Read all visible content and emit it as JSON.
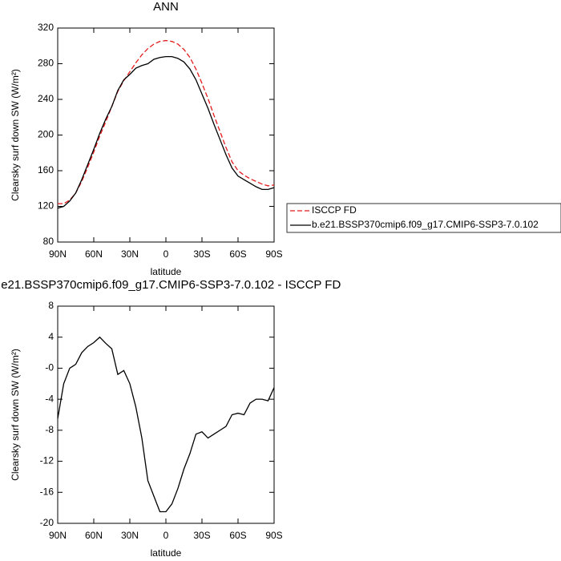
{
  "chart_data": [
    {
      "type": "line",
      "title": "ANN",
      "xlabel": "latitude",
      "ylabel": "Clearsky surf down SW (W/m²)",
      "x": [
        90,
        85,
        80,
        75,
        70,
        65,
        60,
        55,
        50,
        45,
        40,
        35,
        30,
        25,
        20,
        15,
        10,
        5,
        0,
        -5,
        -10,
        -15,
        -20,
        -25,
        -30,
        -35,
        -40,
        -45,
        -50,
        -55,
        -60,
        -65,
        -70,
        -75,
        -80,
        -85,
        -90
      ],
      "series": [
        {
          "name": "ISCCP FD",
          "color": "#e41a1c",
          "linestyle": "dashed",
          "values": [
            123,
            123,
            127,
            135,
            148,
            164,
            181,
            199,
            215,
            232,
            249,
            261,
            271,
            281,
            290,
            297,
            302,
            305,
            306,
            305,
            302,
            296,
            287,
            274,
            258,
            241,
            222,
            204,
            186,
            170,
            160,
            155,
            151,
            148,
            145,
            143,
            144
          ]
        },
        {
          "name": "b.e21.BSSP370cmip6.f09_g17.CMIP6-SSP3-7.0.102",
          "color": "#000000",
          "linestyle": "solid",
          "values": [
            118,
            120,
            126,
            135,
            150,
            167,
            184,
            202,
            218,
            232,
            250,
            262,
            268,
            275,
            278,
            280,
            285,
            287,
            288,
            288,
            286,
            282,
            274,
            262,
            246,
            230,
            212,
            195,
            178,
            163,
            154,
            150,
            146,
            142,
            139,
            139,
            141
          ]
        }
      ],
      "xlim": [
        90,
        -90
      ],
      "xticks": [
        {
          "value": 90,
          "label": "90N"
        },
        {
          "value": 60,
          "label": "60N"
        },
        {
          "value": 30,
          "label": "30N"
        },
        0,
        {
          "value": -30,
          "label": "30S"
        },
        {
          "value": -60,
          "label": "60S"
        },
        {
          "value": -90,
          "label": "90S"
        }
      ],
      "ylim": [
        80,
        320
      ],
      "yticks": [
        80,
        120,
        160,
        200,
        240,
        280,
        320
      ],
      "legend": "right"
    },
    {
      "type": "line",
      "title": "b.e21.BSSP370cmip6.f09_g17.CMIP6-SSP3-7.0.102 - ISCCP FD",
      "xlabel": "latitude",
      "ylabel": "Clearsky surf down SW (W/m²)",
      "x": [
        90,
        85,
        80,
        75,
        70,
        65,
        60,
        55,
        50,
        45,
        40,
        35,
        30,
        25,
        20,
        15,
        10,
        5,
        0,
        -5,
        -10,
        -15,
        -20,
        -25,
        -30,
        -35,
        -40,
        -45,
        -50,
        -55,
        -60,
        -65,
        -70,
        -75,
        -80,
        -85,
        -90
      ],
      "color": "#000000",
      "values": [
        -6.5,
        -2,
        0,
        0.5,
        2,
        2.8,
        3.3,
        4,
        3.2,
        2.5,
        -0.8,
        -0.3,
        -2,
        -5,
        -9,
        -14.5,
        -16.5,
        -18.5,
        -18.5,
        -17.5,
        -15.5,
        -13,
        -11,
        -8.5,
        -8.2,
        -9,
        -8.5,
        -8,
        -7.5,
        -6,
        -5.8,
        -6,
        -4.5,
        -4,
        -4,
        -4.2,
        -2.5
      ],
      "xlim": [
        90,
        -90
      ],
      "xticks": [
        {
          "value": 90,
          "label": "90N"
        },
        {
          "value": 60,
          "label": "60N"
        },
        {
          "value": 30,
          "label": "30N"
        },
        0,
        {
          "value": -30,
          "label": "30S"
        },
        {
          "value": -60,
          "label": "60S"
        },
        {
          "value": -90,
          "label": "90S"
        }
      ],
      "ylim": [
        -20,
        8
      ],
      "yticks": [
        -20,
        -16,
        -12,
        -8,
        -4,
        {
          "value": 0,
          "label": "-0"
        },
        4,
        8
      ]
    }
  ]
}
